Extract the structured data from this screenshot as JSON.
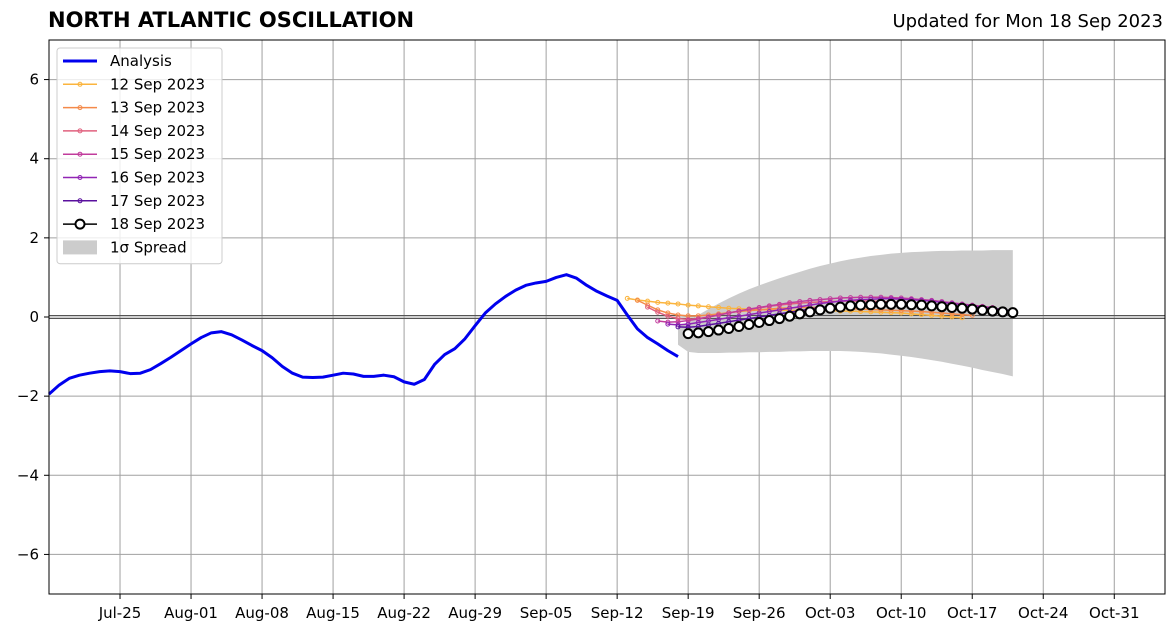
{
  "header": {
    "title": "NORTH ATLANTIC OSCILLATION",
    "updated": "Updated for Mon 18 Sep 2023"
  },
  "colors": {
    "analysis": "#0000ee",
    "spread": "#cccccc",
    "grid": "#a0a0a0",
    "zero_line": "#555555"
  },
  "chart_data": {
    "type": "line",
    "title": "NORTH ATLANTIC OSCILLATION",
    "xlabel": "",
    "ylabel": "",
    "ylim": [
      -7,
      7
    ],
    "xlim": [
      "2023-07-18",
      "2023-11-05"
    ],
    "grid": true,
    "legend_position": "top-left",
    "x_ticks": [
      "Jul-25",
      "Aug-01",
      "Aug-08",
      "Aug-15",
      "Aug-22",
      "Aug-29",
      "Sep-05",
      "Sep-12",
      "Sep-19",
      "Sep-26",
      "Oct-03",
      "Oct-10",
      "Oct-17",
      "Oct-24",
      "Oct-31"
    ],
    "x_tick_dates": [
      "2023-07-25",
      "2023-08-01",
      "2023-08-08",
      "2023-08-15",
      "2023-08-22",
      "2023-08-29",
      "2023-09-05",
      "2023-09-12",
      "2023-09-19",
      "2023-09-26",
      "2023-10-03",
      "2023-10-10",
      "2023-10-17",
      "2023-10-24",
      "2023-10-31"
    ],
    "y_ticks": [
      -6,
      -4,
      -2,
      0,
      2,
      4,
      6
    ],
    "y_tick_labels": [
      "−6",
      "−4",
      "−2",
      "0",
      "2",
      "4",
      "6"
    ],
    "series": [
      {
        "name": "Analysis",
        "color": "#0000ee",
        "style": "thick",
        "x": [
          "2023-07-18",
          "2023-07-19",
          "2023-07-20",
          "2023-07-21",
          "2023-07-22",
          "2023-07-23",
          "2023-07-24",
          "2023-07-25",
          "2023-07-26",
          "2023-07-27",
          "2023-07-28",
          "2023-07-29",
          "2023-07-30",
          "2023-07-31",
          "2023-08-01",
          "2023-08-02",
          "2023-08-03",
          "2023-08-04",
          "2023-08-05",
          "2023-08-06",
          "2023-08-07",
          "2023-08-08",
          "2023-08-09",
          "2023-08-10",
          "2023-08-11",
          "2023-08-12",
          "2023-08-13",
          "2023-08-14",
          "2023-08-15",
          "2023-08-16",
          "2023-08-17",
          "2023-08-18",
          "2023-08-19",
          "2023-08-20",
          "2023-08-21",
          "2023-08-22",
          "2023-08-23",
          "2023-08-24",
          "2023-08-25",
          "2023-08-26",
          "2023-08-27",
          "2023-08-28",
          "2023-08-29",
          "2023-08-30",
          "2023-08-31",
          "2023-09-01",
          "2023-09-02",
          "2023-09-03",
          "2023-09-04",
          "2023-09-05",
          "2023-09-06",
          "2023-09-07",
          "2023-09-08",
          "2023-09-09",
          "2023-09-10",
          "2023-09-11",
          "2023-09-12",
          "2023-09-13",
          "2023-09-14",
          "2023-09-15",
          "2023-09-16",
          "2023-09-17",
          "2023-09-18"
        ],
        "values": [
          -1.95,
          -1.72,
          -1.55,
          -1.47,
          -1.42,
          -1.38,
          -1.36,
          -1.38,
          -1.43,
          -1.42,
          -1.33,
          -1.18,
          -1.02,
          -0.85,
          -0.68,
          -0.52,
          -0.4,
          -0.37,
          -0.45,
          -0.58,
          -0.72,
          -0.85,
          -1.03,
          -1.25,
          -1.42,
          -1.52,
          -1.53,
          -1.52,
          -1.47,
          -1.42,
          -1.44,
          -1.5,
          -1.5,
          -1.47,
          -1.51,
          -1.64,
          -1.7,
          -1.58,
          -1.2,
          -0.95,
          -0.8,
          -0.55,
          -0.22,
          0.1,
          0.33,
          0.52,
          0.68,
          0.8,
          0.86,
          0.9,
          1.0,
          1.07,
          0.98,
          0.8,
          0.65,
          0.53,
          0.42,
          0.05,
          -0.3,
          -0.52,
          -0.68,
          -0.85,
          -1.0
        ]
      },
      {
        "name": "12 Sep 2023",
        "color": "#fbb43d",
        "style": "small-marker",
        "x": [
          "2023-09-13",
          "2023-09-14",
          "2023-09-15",
          "2023-09-16",
          "2023-09-17",
          "2023-09-18",
          "2023-09-19",
          "2023-09-20",
          "2023-09-21",
          "2023-09-22",
          "2023-09-23",
          "2023-09-24",
          "2023-09-25",
          "2023-09-26",
          "2023-09-27",
          "2023-09-28",
          "2023-09-29",
          "2023-09-30",
          "2023-10-01",
          "2023-10-02",
          "2023-10-03",
          "2023-10-04",
          "2023-10-05",
          "2023-10-06",
          "2023-10-07",
          "2023-10-08",
          "2023-10-09",
          "2023-10-10",
          "2023-10-11",
          "2023-10-12",
          "2023-10-13",
          "2023-10-14",
          "2023-10-15",
          "2023-10-16"
        ],
        "values": [
          0.47,
          0.43,
          0.4,
          0.37,
          0.35,
          0.33,
          0.3,
          0.28,
          0.26,
          0.24,
          0.22,
          0.21,
          0.2,
          0.19,
          0.18,
          0.17,
          0.17,
          0.16,
          0.16,
          0.16,
          0.16,
          0.15,
          0.15,
          0.14,
          0.13,
          0.12,
          0.11,
          0.1,
          0.08,
          0.06,
          0.04,
          0.02,
          0.0,
          -0.02
        ]
      },
      {
        "name": "13 Sep 2023",
        "color": "#f48a4a",
        "style": "small-marker",
        "x": [
          "2023-09-14",
          "2023-09-15",
          "2023-09-16",
          "2023-09-17",
          "2023-09-18",
          "2023-09-19",
          "2023-09-20",
          "2023-09-21",
          "2023-09-22",
          "2023-09-23",
          "2023-09-24",
          "2023-09-25",
          "2023-09-26",
          "2023-09-27",
          "2023-09-28",
          "2023-09-29",
          "2023-09-30",
          "2023-10-01",
          "2023-10-02",
          "2023-10-03",
          "2023-10-04",
          "2023-10-05",
          "2023-10-06",
          "2023-10-07",
          "2023-10-08",
          "2023-10-09",
          "2023-10-10",
          "2023-10-11",
          "2023-10-12",
          "2023-10-13",
          "2023-10-14",
          "2023-10-15",
          "2023-10-16",
          "2023-10-17"
        ],
        "values": [
          0.42,
          0.3,
          0.18,
          0.1,
          0.05,
          0.03,
          0.03,
          0.05,
          0.08,
          0.11,
          0.14,
          0.16,
          0.18,
          0.2,
          0.22,
          0.23,
          0.24,
          0.24,
          0.24,
          0.23,
          0.22,
          0.21,
          0.2,
          0.19,
          0.18,
          0.17,
          0.16,
          0.15,
          0.14,
          0.12,
          0.1,
          0.08,
          0.06,
          0.04
        ]
      },
      {
        "name": "14 Sep 2023",
        "color": "#e0607e",
        "style": "small-marker",
        "x": [
          "2023-09-15",
          "2023-09-16",
          "2023-09-17",
          "2023-09-18",
          "2023-09-19",
          "2023-09-20",
          "2023-09-21",
          "2023-09-22",
          "2023-09-23",
          "2023-09-24",
          "2023-09-25",
          "2023-09-26",
          "2023-09-27",
          "2023-09-28",
          "2023-09-29",
          "2023-09-30",
          "2023-10-01",
          "2023-10-02",
          "2023-10-03",
          "2023-10-04",
          "2023-10-05",
          "2023-10-06",
          "2023-10-07",
          "2023-10-08",
          "2023-10-09",
          "2023-10-10",
          "2023-10-11",
          "2023-10-12",
          "2023-10-13",
          "2023-10-14",
          "2023-10-15",
          "2023-10-16",
          "2023-10-17",
          "2023-10-18"
        ],
        "values": [
          0.25,
          0.12,
          0.02,
          -0.04,
          -0.06,
          -0.04,
          0.0,
          0.05,
          0.1,
          0.15,
          0.19,
          0.23,
          0.27,
          0.3,
          0.33,
          0.35,
          0.37,
          0.38,
          0.39,
          0.4,
          0.4,
          0.4,
          0.4,
          0.39,
          0.38,
          0.37,
          0.36,
          0.34,
          0.32,
          0.3,
          0.28,
          0.26,
          0.24,
          0.22
        ]
      },
      {
        "name": "15 Sep 2023",
        "color": "#c13c9c",
        "style": "small-marker",
        "x": [
          "2023-09-16",
          "2023-09-17",
          "2023-09-18",
          "2023-09-19",
          "2023-09-20",
          "2023-09-21",
          "2023-09-22",
          "2023-09-23",
          "2023-09-24",
          "2023-09-25",
          "2023-09-26",
          "2023-09-27",
          "2023-09-28",
          "2023-09-29",
          "2023-09-30",
          "2023-10-01",
          "2023-10-02",
          "2023-10-03",
          "2023-10-04",
          "2023-10-05",
          "2023-10-06",
          "2023-10-07",
          "2023-10-08",
          "2023-10-09",
          "2023-10-10",
          "2023-10-11",
          "2023-10-12",
          "2023-10-13",
          "2023-10-14",
          "2023-10-15",
          "2023-10-16",
          "2023-10-17",
          "2023-10-18",
          "2023-10-19"
        ],
        "values": [
          -0.1,
          -0.13,
          -0.12,
          -0.09,
          -0.05,
          0.0,
          0.05,
          0.1,
          0.15,
          0.2,
          0.24,
          0.28,
          0.32,
          0.36,
          0.39,
          0.42,
          0.44,
          0.46,
          0.48,
          0.49,
          0.5,
          0.5,
          0.5,
          0.49,
          0.48,
          0.46,
          0.44,
          0.42,
          0.39,
          0.36,
          0.33,
          0.3,
          0.27,
          0.24
        ]
      },
      {
        "name": "16 Sep 2023",
        "color": "#9125b5",
        "style": "small-marker",
        "x": [
          "2023-09-17",
          "2023-09-18",
          "2023-09-19",
          "2023-09-20",
          "2023-09-21",
          "2023-09-22",
          "2023-09-23",
          "2023-09-24",
          "2023-09-25",
          "2023-09-26",
          "2023-09-27",
          "2023-09-28",
          "2023-09-29",
          "2023-09-30",
          "2023-10-01",
          "2023-10-02",
          "2023-10-03",
          "2023-10-04",
          "2023-10-05",
          "2023-10-06",
          "2023-10-07",
          "2023-10-08",
          "2023-10-09",
          "2023-10-10",
          "2023-10-11",
          "2023-10-12",
          "2023-10-13",
          "2023-10-14",
          "2023-10-15",
          "2023-10-16",
          "2023-10-17",
          "2023-10-18",
          "2023-10-19",
          "2023-10-20"
        ],
        "values": [
          -0.18,
          -0.2,
          -0.18,
          -0.14,
          -0.1,
          -0.06,
          -0.02,
          0.02,
          0.06,
          0.1,
          0.14,
          0.18,
          0.22,
          0.26,
          0.3,
          0.34,
          0.37,
          0.4,
          0.42,
          0.44,
          0.45,
          0.46,
          0.46,
          0.45,
          0.44,
          0.42,
          0.4,
          0.37,
          0.34,
          0.31,
          0.28,
          0.25,
          0.22,
          0.19
        ]
      },
      {
        "name": "17 Sep 2023",
        "color": "#5a109e",
        "style": "small-marker",
        "x": [
          "2023-09-18",
          "2023-09-19",
          "2023-09-20",
          "2023-09-21",
          "2023-09-22",
          "2023-09-23",
          "2023-09-24",
          "2023-09-25",
          "2023-09-26",
          "2023-09-27",
          "2023-09-28",
          "2023-09-29",
          "2023-09-30",
          "2023-10-01",
          "2023-10-02",
          "2023-10-03",
          "2023-10-04",
          "2023-10-05",
          "2023-10-06",
          "2023-10-07",
          "2023-10-08",
          "2023-10-09",
          "2023-10-10",
          "2023-10-11",
          "2023-10-12",
          "2023-10-13",
          "2023-10-14",
          "2023-10-15",
          "2023-10-16",
          "2023-10-17",
          "2023-10-18",
          "2023-10-19",
          "2023-10-20",
          "2023-10-21"
        ],
        "values": [
          -0.25,
          -0.26,
          -0.24,
          -0.2,
          -0.16,
          -0.12,
          -0.08,
          -0.04,
          0.0,
          0.04,
          0.08,
          0.12,
          0.16,
          0.2,
          0.24,
          0.27,
          0.3,
          0.32,
          0.34,
          0.35,
          0.36,
          0.36,
          0.36,
          0.35,
          0.34,
          0.32,
          0.3,
          0.28,
          0.26,
          0.24,
          0.22,
          0.2,
          0.18,
          0.16
        ]
      },
      {
        "name": "18 Sep 2023",
        "color": "#000000",
        "style": "big-marker",
        "x": [
          "2023-09-19",
          "2023-09-20",
          "2023-09-21",
          "2023-09-22",
          "2023-09-23",
          "2023-09-24",
          "2023-09-25",
          "2023-09-26",
          "2023-09-27",
          "2023-09-28",
          "2023-09-29",
          "2023-09-30",
          "2023-10-01",
          "2023-10-02",
          "2023-10-03",
          "2023-10-04",
          "2023-10-05",
          "2023-10-06",
          "2023-10-07",
          "2023-10-08",
          "2023-10-09",
          "2023-10-10",
          "2023-10-11",
          "2023-10-12",
          "2023-10-13",
          "2023-10-14",
          "2023-10-15",
          "2023-10-16",
          "2023-10-17",
          "2023-10-18",
          "2023-10-19",
          "2023-10-20",
          "2023-10-21"
        ],
        "values": [
          -0.42,
          -0.4,
          -0.37,
          -0.33,
          -0.29,
          -0.24,
          -0.19,
          -0.14,
          -0.09,
          -0.04,
          0.02,
          0.08,
          0.13,
          0.18,
          0.22,
          0.25,
          0.28,
          0.3,
          0.31,
          0.32,
          0.32,
          0.32,
          0.31,
          0.3,
          0.28,
          0.26,
          0.24,
          0.22,
          0.2,
          0.17,
          0.15,
          0.13,
          0.11
        ]
      }
    ],
    "spread": {
      "name": "1σ Spread",
      "color": "#cccccc",
      "x": [
        "2023-09-18",
        "2023-09-19",
        "2023-09-20",
        "2023-09-21",
        "2023-09-22",
        "2023-09-23",
        "2023-09-24",
        "2023-09-25",
        "2023-09-26",
        "2023-09-27",
        "2023-09-28",
        "2023-09-29",
        "2023-09-30",
        "2023-10-01",
        "2023-10-02",
        "2023-10-03",
        "2023-10-04",
        "2023-10-05",
        "2023-10-06",
        "2023-10-07",
        "2023-10-08",
        "2023-10-09",
        "2023-10-10",
        "2023-10-11",
        "2023-10-12",
        "2023-10-13",
        "2023-10-14",
        "2023-10-15",
        "2023-10-16",
        "2023-10-17",
        "2023-10-18",
        "2023-10-19",
        "2023-10-20",
        "2023-10-21"
      ],
      "upper": [
        -0.25,
        -0.12,
        0.05,
        0.2,
        0.34,
        0.47,
        0.59,
        0.7,
        0.8,
        0.89,
        0.98,
        1.06,
        1.14,
        1.22,
        1.29,
        1.35,
        1.41,
        1.46,
        1.5,
        1.54,
        1.57,
        1.6,
        1.62,
        1.64,
        1.65,
        1.66,
        1.67,
        1.67,
        1.68,
        1.68,
        1.68,
        1.69,
        1.69,
        1.69
      ],
      "lower": [
        -0.7,
        -0.88,
        -0.91,
        -0.91,
        -0.91,
        -0.9,
        -0.9,
        -0.89,
        -0.89,
        -0.88,
        -0.88,
        -0.87,
        -0.87,
        -0.86,
        -0.86,
        -0.86,
        -0.86,
        -0.87,
        -0.88,
        -0.9,
        -0.92,
        -0.95,
        -0.98,
        -1.01,
        -1.05,
        -1.09,
        -1.13,
        -1.18,
        -1.23,
        -1.28,
        -1.34,
        -1.39,
        -1.44,
        -1.5
      ]
    }
  },
  "legend": {
    "items": [
      {
        "label": "Analysis",
        "color": "#0000ee",
        "style": "thick"
      },
      {
        "label": "12 Sep 2023",
        "color": "#fbb43d",
        "style": "small-marker"
      },
      {
        "label": "13 Sep 2023",
        "color": "#f48a4a",
        "style": "small-marker"
      },
      {
        "label": "14 Sep 2023",
        "color": "#e0607e",
        "style": "small-marker"
      },
      {
        "label": "15 Sep 2023",
        "color": "#c13c9c",
        "style": "small-marker"
      },
      {
        "label": "16 Sep 2023",
        "color": "#9125b5",
        "style": "small-marker"
      },
      {
        "label": "17 Sep 2023",
        "color": "#5a109e",
        "style": "small-marker"
      },
      {
        "label": "18 Sep 2023",
        "color": "#000000",
        "style": "big-marker"
      },
      {
        "label": "1σ Spread",
        "color": "#cccccc",
        "style": "patch"
      }
    ]
  }
}
